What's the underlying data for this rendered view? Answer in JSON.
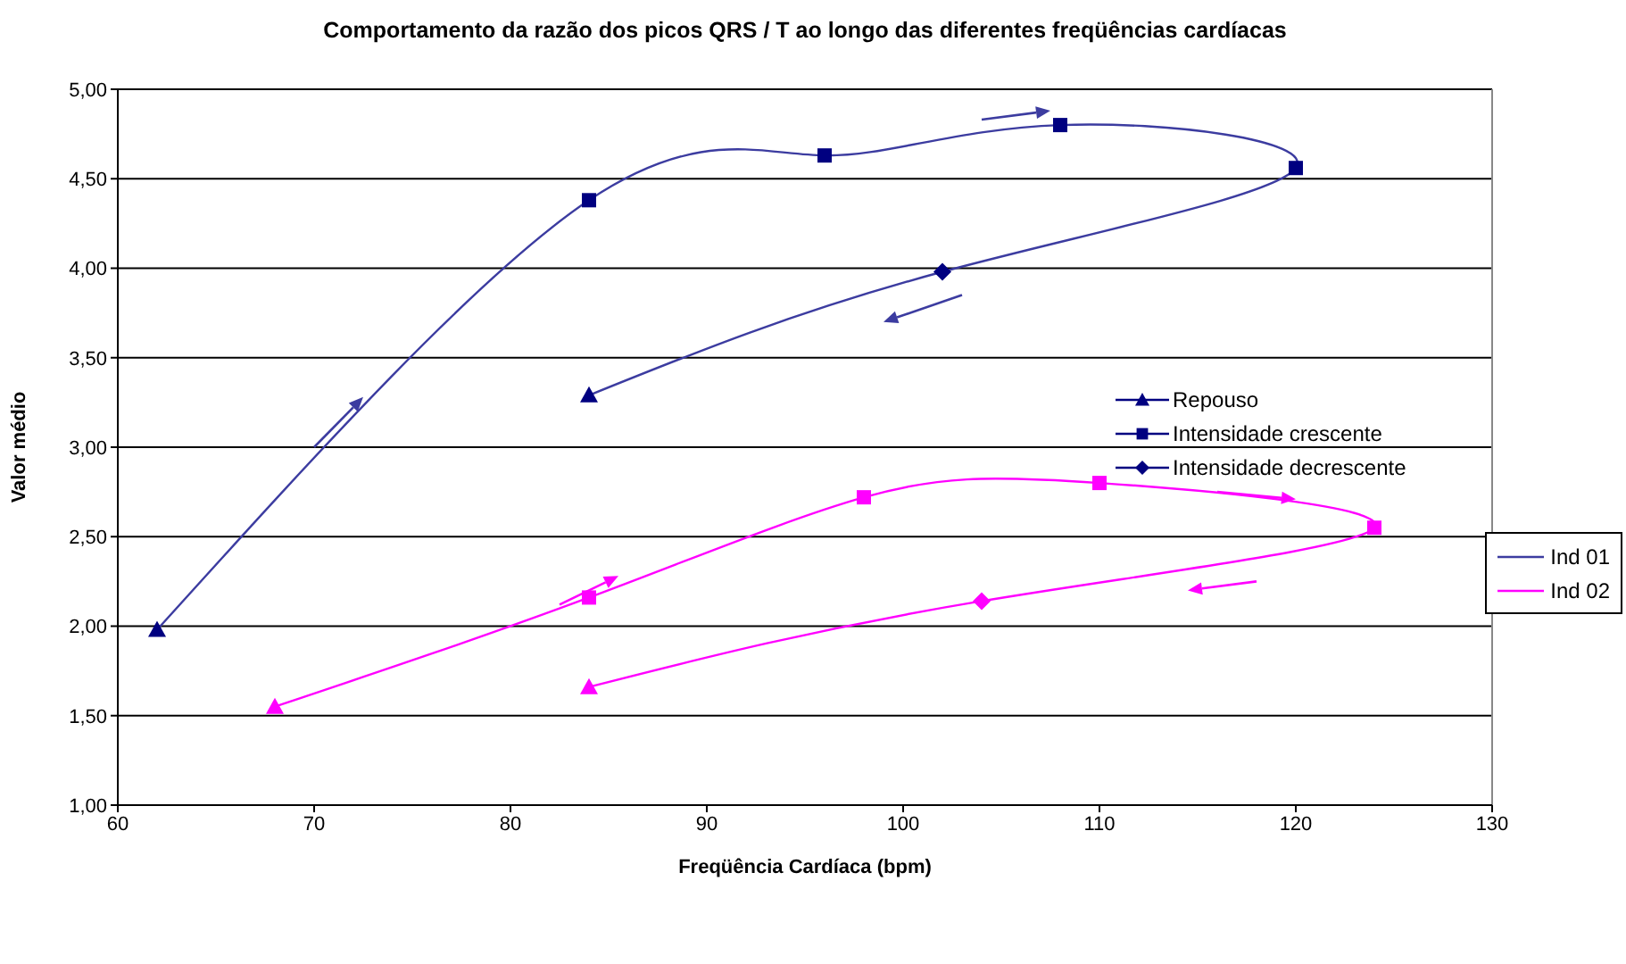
{
  "chart_data": {
    "type": "line",
    "title": "Comportamento da razão dos picos QRS / T ao longo das diferentes freqüências cardíacas",
    "xlabel": "Freqüência Cardíaca (bpm)",
    "ylabel": "Valor médio",
    "xlim": [
      60,
      130
    ],
    "xticks": [
      60,
      70,
      80,
      90,
      100,
      110,
      120,
      130
    ],
    "ylim": [
      1,
      5
    ],
    "yticks": [
      {
        "value": 1,
        "label": "1,00"
      },
      {
        "value": 1.5,
        "label": "1,50"
      },
      {
        "value": 2,
        "label": "2,00"
      },
      {
        "value": 2.5,
        "label": "2,50"
      },
      {
        "value": 3,
        "label": "3,00"
      },
      {
        "value": 3.5,
        "label": "3,50"
      },
      {
        "value": 4,
        "label": "4,00"
      },
      {
        "value": 4.5,
        "label": "4,50"
      },
      {
        "value": 5,
        "label": "5,00"
      }
    ],
    "grid": "y",
    "legend": "right",
    "line_style": "solid",
    "series": [
      {
        "name": "Ind 01",
        "color": "#3c3ca0",
        "marker": "none",
        "x": [
          62,
          84,
          96,
          108,
          120,
          102,
          84
        ],
        "values": [
          1.98,
          4.38,
          4.63,
          4.8,
          4.56,
          3.98,
          3.29
        ]
      },
      {
        "name": "Ind 02",
        "color": "#ff00ff",
        "marker": "none",
        "x": [
          68,
          84,
          98,
          110,
          124,
          104,
          84
        ],
        "values": [
          1.55,
          2.16,
          2.72,
          2.8,
          2.55,
          2.14,
          1.66
        ]
      },
      {
        "name": "Repouso",
        "type": "scatter",
        "marker": "triangle",
        "color": "#000080",
        "x": [
          62,
          84,
          68,
          84
        ],
        "values": [
          1.98,
          3.29,
          1.55,
          1.66
        ],
        "colors": [
          "#000080",
          "#000080",
          "#ff00ff",
          "#ff00ff"
        ]
      },
      {
        "name": "Intensidade crescente",
        "type": "scatter",
        "marker": "square",
        "color": "#000080",
        "x": [
          84,
          96,
          108,
          120,
          84,
          98,
          110,
          124
        ],
        "values": [
          4.38,
          4.63,
          4.8,
          4.56,
          2.16,
          2.72,
          2.8,
          2.55
        ],
        "colors": [
          "#000080",
          "#000080",
          "#000080",
          "#000080",
          "#ff00ff",
          "#ff00ff",
          "#ff00ff",
          "#ff00ff"
        ]
      },
      {
        "name": "Intensidade decrescente",
        "type": "scatter",
        "marker": "diamond",
        "color": "#000080",
        "x": [
          102,
          104
        ],
        "values": [
          3.98,
          2.14
        ],
        "colors": [
          "#000080",
          "#ff00ff"
        ]
      }
    ]
  }
}
